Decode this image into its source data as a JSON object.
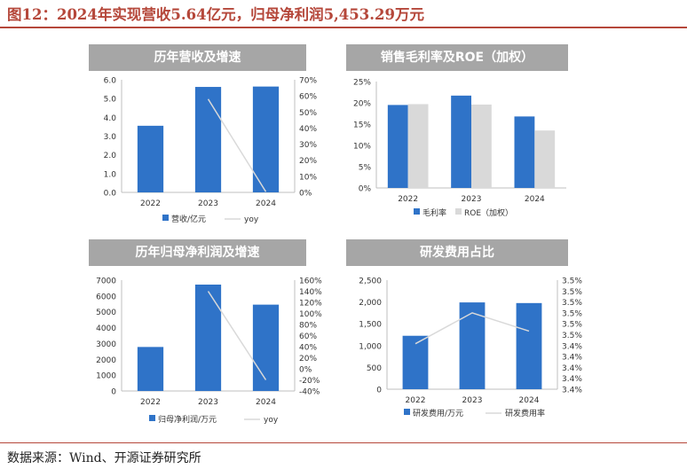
{
  "figure_title": "图12：2024年实现营收5.64亿元，归母净利润5,453.29万元",
  "source": "数据来源：Wind、开源证券研究所",
  "colors": {
    "bar": "#2f73c8",
    "bar_secondary": "#d9d9d9",
    "line": "#d9d9d9",
    "header_bg": "#a6a6a6",
    "title": "#b5473a"
  },
  "chart_data": [
    {
      "type": "bar",
      "title": "历年营收及增速",
      "categories": [
        "2022",
        "2023",
        "2024"
      ],
      "series": [
        {
          "name": "营收/亿元",
          "type": "bar",
          "axis": "left",
          "values": [
            3.55,
            5.62,
            5.64
          ]
        },
        {
          "name": "yoy",
          "type": "line",
          "axis": "right",
          "values": [
            null,
            58,
            0.4
          ]
        }
      ],
      "ylim": [
        0,
        6
      ],
      "y_ticks": [
        "0.0",
        "1.0",
        "2.0",
        "3.0",
        "4.0",
        "5.0",
        "6.0"
      ],
      "y2lim": [
        0,
        70
      ],
      "y2_ticks": [
        "0%",
        "10%",
        "20%",
        "30%",
        "40%",
        "50%",
        "60%",
        "70%"
      ],
      "legend_position": "bottom"
    },
    {
      "type": "bar",
      "title": "销售毛利率及ROE（加权）",
      "categories": [
        "2022",
        "2023",
        "2024"
      ],
      "series": [
        {
          "name": "毛利率",
          "values": [
            19.5,
            21.7,
            16.8
          ]
        },
        {
          "name": "ROE（加权）",
          "values": [
            19.7,
            19.6,
            13.5
          ]
        }
      ],
      "ylim": [
        0,
        25
      ],
      "y_ticks": [
        "0%",
        "5%",
        "10%",
        "15%",
        "20%",
        "25%"
      ],
      "legend_position": "bottom"
    },
    {
      "type": "bar",
      "title": "历年归母净利润及增速",
      "categories": [
        "2022",
        "2023",
        "2024"
      ],
      "series": [
        {
          "name": "归母净利润/万元",
          "type": "bar",
          "axis": "left",
          "values": [
            2780,
            6720,
            5453.29
          ]
        },
        {
          "name": "yoy",
          "type": "line",
          "axis": "right",
          "values": [
            null,
            140,
            -20
          ]
        }
      ],
      "ylim": [
        0,
        7000
      ],
      "y_ticks": [
        "0",
        "1000",
        "2000",
        "3000",
        "4000",
        "5000",
        "6000",
        "7000"
      ],
      "y2lim": [
        -40,
        160
      ],
      "y2_ticks": [
        "-40%",
        "-20%",
        "0%",
        "20%",
        "40%",
        "60%",
        "80%",
        "100%",
        "120%",
        "140%",
        "160%"
      ],
      "legend_position": "bottom"
    },
    {
      "type": "bar",
      "title": "研发费用占比",
      "categories": [
        "2022",
        "2023",
        "2024"
      ],
      "series": [
        {
          "name": "研发费用/万元",
          "type": "bar",
          "axis": "left",
          "values": [
            1225,
            1990,
            1975
          ]
        },
        {
          "name": "研发费用率",
          "type": "line",
          "axis": "right",
          "values": [
            0.417,
            0.7,
            0.533
          ]
        }
      ],
      "ylim": [
        0,
        2500
      ],
      "y_ticks": [
        "0",
        "500",
        "1,000",
        "1,500",
        "2,000",
        "2,500"
      ],
      "y2_tick_labels": [
        "3.4%",
        "3.4%",
        "3.4%",
        "3.4%",
        "3.4%",
        "3.5%",
        "3.5%",
        "3.5%",
        "3.5%",
        "3.5%",
        "3.5%"
      ],
      "legend_position": "bottom"
    }
  ]
}
